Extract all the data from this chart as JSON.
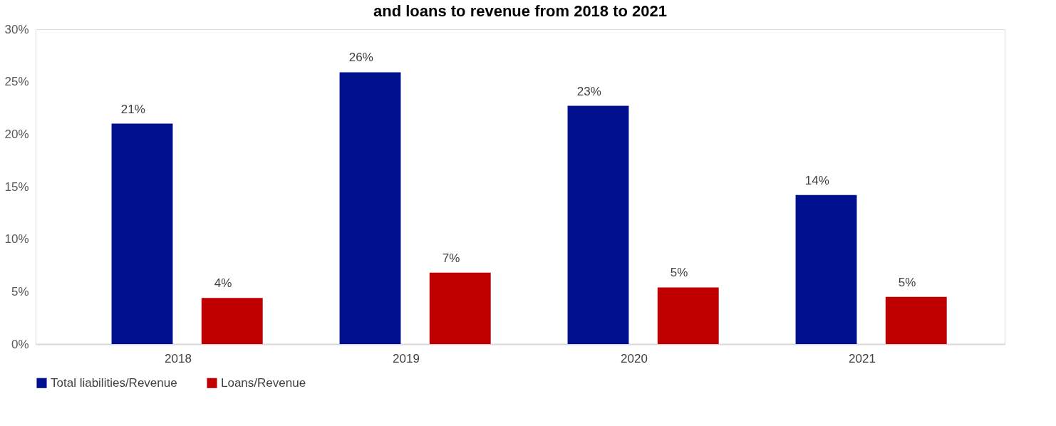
{
  "chart_data": {
    "type": "bar",
    "title": "and loans to revenue from 2018 to 2021",
    "categories": [
      "2018",
      "2019",
      "2020",
      "2021"
    ],
    "series": [
      {
        "name": "Total liabilities/Revenue",
        "color": "#00108f",
        "values": [
          21.0,
          25.9,
          22.7,
          14.2
        ],
        "value_labels": [
          "21%",
          "26%",
          "23%",
          "14%"
        ]
      },
      {
        "name": "Loans/Revenue",
        "color": "#c00000",
        "values": [
          4.4,
          6.8,
          5.4,
          4.5
        ],
        "value_labels": [
          "4%",
          "7%",
          "5%",
          "5%"
        ]
      }
    ],
    "ylim": [
      0,
      30
    ],
    "yticks": [
      {
        "value": 0,
        "label": "0%"
      },
      {
        "value": 5,
        "label": "5%"
      },
      {
        "value": 10,
        "label": "10%"
      },
      {
        "value": 15,
        "label": "15%"
      },
      {
        "value": 20,
        "label": "20%"
      },
      {
        "value": 25,
        "label": "25%"
      },
      {
        "value": 30,
        "label": "30%"
      }
    ],
    "grid": false,
    "legend": "bottom"
  }
}
